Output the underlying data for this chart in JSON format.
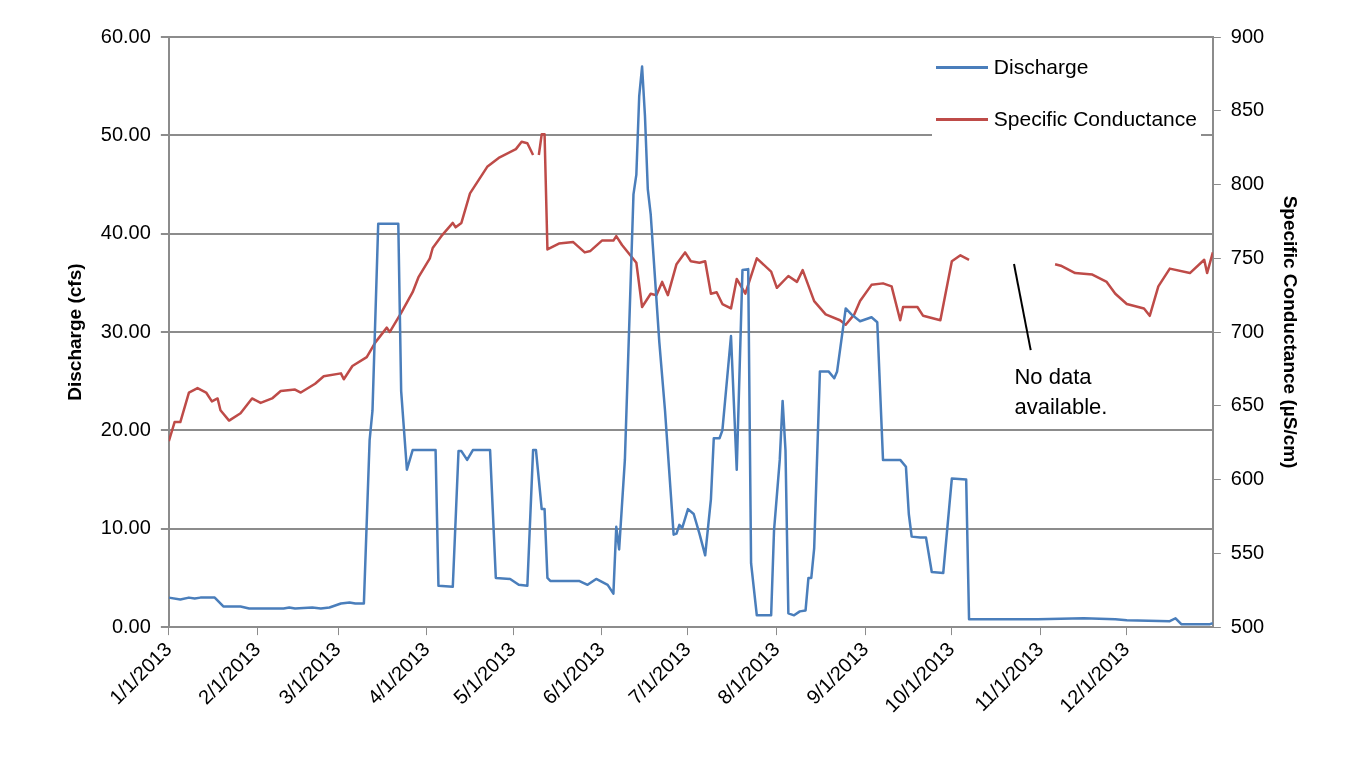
{
  "chart_data": {
    "type": "line",
    "xlabel": null,
    "ylabel": "Discharge (cfs)",
    "y2label": "Specific Conductance (µS/cm)",
    "xlim": [
      "2013-01-01",
      "2013-12-31"
    ],
    "xticks": [
      {
        "value": "2013-01-01",
        "label": "1/1/2013"
      },
      {
        "value": "2013-02-01",
        "label": "2/1/2013"
      },
      {
        "value": "2013-03-01",
        "label": "3/1/2013"
      },
      {
        "value": "2013-04-01",
        "label": "4/1/2013"
      },
      {
        "value": "2013-05-01",
        "label": "5/1/2013"
      },
      {
        "value": "2013-06-01",
        "label": "6/1/2013"
      },
      {
        "value": "2013-07-01",
        "label": "7/1/2013"
      },
      {
        "value": "2013-08-01",
        "label": "8/1/2013"
      },
      {
        "value": "2013-09-01",
        "label": "9/1/2013"
      },
      {
        "value": "2013-10-01",
        "label": "10/1/2013"
      },
      {
        "value": "2013-11-01",
        "label": "11/1/2013"
      },
      {
        "value": "2013-12-01",
        "label": "12/1/2013"
      }
    ],
    "ylim": [
      0,
      60
    ],
    "yticks": [
      {
        "value": 0,
        "label": "0.00"
      },
      {
        "value": 10,
        "label": "10.00"
      },
      {
        "value": 20,
        "label": "20.00"
      },
      {
        "value": 30,
        "label": "30.00"
      },
      {
        "value": 40,
        "label": "40.00"
      },
      {
        "value": 50,
        "label": "50.00"
      },
      {
        "value": 60,
        "label": "60.00"
      }
    ],
    "y2lim": [
      500,
      900
    ],
    "y2ticks": [
      500,
      550,
      600,
      650,
      700,
      750,
      800,
      850,
      900
    ],
    "grid": "y",
    "legend": "top right",
    "marker": "none",
    "line_style": "solid",
    "annotations": [
      "No data available."
    ],
    "series": [
      {
        "name": "Discharge",
        "color": "#4a7ebb",
        "x": [
          "2013-01-01",
          "2013-01-05",
          "2013-01-08",
          "2013-01-10",
          "2013-01-12",
          "2013-01-17",
          "2013-01-20",
          "2013-01-26",
          "2013-01-29",
          "2013-02-10",
          "2013-02-12",
          "2013-02-14",
          "2013-02-20",
          "2013-02-23",
          "2013-02-26",
          "2013-03-02",
          "2013-03-05",
          "2013-03-07",
          "2013-03-10",
          "2013-03-12",
          "2013-03-13",
          "2013-03-15",
          "2013-03-22",
          "2013-03-23",
          "2013-03-25",
          "2013-03-27",
          "2013-04-04",
          "2013-04-05",
          "2013-04-10",
          "2013-04-12",
          "2013-04-13",
          "2013-04-15",
          "2013-04-17",
          "2013-04-23",
          "2013-04-25",
          "2013-04-30",
          "2013-05-03",
          "2013-05-06",
          "2013-05-08",
          "2013-05-09",
          "2013-05-11",
          "2013-05-12",
          "2013-05-13",
          "2013-05-14",
          "2013-05-24",
          "2013-05-27",
          "2013-05-30",
          "2013-06-03",
          "2013-06-05",
          "2013-06-06",
          "2013-06-07",
          "2013-06-09",
          "2013-06-12",
          "2013-06-13",
          "2013-06-14",
          "2013-06-15",
          "2013-06-16",
          "2013-06-17",
          "2013-06-18",
          "2013-06-21",
          "2013-06-23",
          "2013-06-26",
          "2013-06-27",
          "2013-06-28",
          "2013-06-29",
          "2013-07-01",
          "2013-07-03",
          "2013-07-05",
          "2013-07-07",
          "2013-07-09",
          "2013-07-10",
          "2013-07-12",
          "2013-07-13",
          "2013-07-16",
          "2013-07-18",
          "2013-07-20",
          "2013-07-22",
          "2013-07-23",
          "2013-07-25",
          "2013-07-30",
          "2013-07-31",
          "2013-08-02",
          "2013-08-03",
          "2013-08-04",
          "2013-08-05",
          "2013-08-07",
          "2013-08-09",
          "2013-08-11",
          "2013-08-12",
          "2013-08-13",
          "2013-08-14",
          "2013-08-16",
          "2013-08-19",
          "2013-08-21",
          "2013-08-22",
          "2013-08-25",
          "2013-08-27",
          "2013-08-30",
          "2013-09-03",
          "2013-09-05",
          "2013-09-07",
          "2013-09-13",
          "2013-09-15",
          "2013-09-16",
          "2013-09-17",
          "2013-09-20",
          "2013-09-22",
          "2013-09-24",
          "2013-09-28",
          "2013-10-01",
          "2013-10-06",
          "2013-10-07",
          "2013-10-31",
          "2013-11-16",
          "2013-11-27",
          "2013-12-01",
          "2013-12-16",
          "2013-12-18",
          "2013-12-20",
          "2013-12-30",
          "2013-12-31"
        ],
        "values": [
          3.0,
          2.8,
          3.0,
          2.9,
          3.0,
          3.0,
          2.1,
          2.1,
          1.9,
          1.9,
          2.0,
          1.9,
          2.0,
          1.9,
          2.0,
          2.4,
          2.5,
          2.4,
          2.4,
          19,
          22,
          41,
          41,
          24,
          16,
          18,
          18,
          4.2,
          4.1,
          17.9,
          17.9,
          17,
          18,
          18,
          5.0,
          4.9,
          4.3,
          4.2,
          18,
          18,
          12,
          12,
          5.0,
          4.7,
          4.7,
          4.3,
          4.9,
          4.3,
          3.4,
          10.2,
          7.9,
          17,
          44,
          46,
          54,
          57,
          52,
          44.5,
          42,
          29,
          22,
          9.4,
          9.5,
          10.4,
          10.1,
          12,
          11.5,
          9.5,
          7.3,
          13,
          19.2,
          19.2,
          20,
          29.6,
          16,
          36.3,
          36.4,
          6.5,
          1.2,
          1.2,
          9.8,
          17,
          23,
          18,
          1.4,
          1.2,
          1.6,
          1.7,
          5,
          5,
          8,
          26,
          26,
          25.3,
          26,
          32.4,
          31.8,
          31.1,
          31.5,
          31,
          17,
          17,
          16.3,
          11.5,
          9.2,
          9.1,
          9.1,
          5.6,
          5.5,
          15.1,
          15,
          0.8,
          0.8,
          0.9,
          0.8,
          0.7,
          0.6,
          0.9,
          0.3,
          0.3,
          0.4
        ]
      },
      {
        "name": "Specific Conductance",
        "color": "#be4b48",
        "axis": "y2",
        "x": [
          "2013-01-01",
          "2013-01-03",
          "2013-01-05",
          "2013-01-08",
          "2013-01-11",
          "2013-01-14",
          "2013-01-16",
          "2013-01-18",
          "2013-01-19",
          "2013-01-22",
          "2013-01-26",
          "2013-01-30",
          "2013-02-02",
          "2013-02-06",
          "2013-02-09",
          "2013-02-14",
          "2013-02-16",
          "2013-02-21",
          "2013-02-24",
          "2013-03-02",
          "2013-03-03",
          "2013-03-06",
          "2013-03-11",
          "2013-03-14",
          "2013-03-18",
          "2013-03-19",
          "2013-03-23",
          "2013-03-27",
          "2013-03-29",
          "2013-04-02",
          "2013-04-03",
          "2013-04-06",
          "2013-04-10",
          "2013-04-11",
          "2013-04-13",
          "2013-04-16",
          "2013-04-22",
          "2013-04-26",
          "2013-05-02",
          "2013-05-04",
          "2013-05-06",
          "2013-05-08",
          "2013-05-09",
          "2013-05-10",
          "2013-05-11",
          "2013-05-12",
          "2013-05-13",
          "2013-05-17",
          "2013-05-22",
          "2013-05-26",
          "2013-05-28",
          "2013-06-01",
          "2013-06-05",
          "2013-06-06",
          "2013-06-08",
          "2013-06-13",
          "2013-06-15",
          "2013-06-18",
          "2013-06-20",
          "2013-06-22",
          "2013-06-24",
          "2013-06-27",
          "2013-06-30",
          "2013-07-02",
          "2013-07-05",
          "2013-07-07",
          "2013-07-09",
          "2013-07-11",
          "2013-07-13",
          "2013-07-16",
          "2013-07-18",
          "2013-07-21",
          "2013-07-25",
          "2013-07-30",
          "2013-08-01",
          "2013-08-05",
          "2013-08-08",
          "2013-08-10",
          "2013-08-14",
          "2013-08-18",
          "2013-08-23",
          "2013-08-25",
          "2013-08-28",
          "2013-08-30",
          "2013-09-03",
          "2013-09-07",
          "2013-09-10",
          "2013-09-13",
          "2013-09-14",
          "2013-09-19",
          "2013-09-21",
          "2013-09-27",
          "2013-10-01",
          "2013-10-04",
          "2013-10-07",
          "2013-10-20",
          "2013-11-06",
          "2013-11-08",
          "2013-11-13",
          "2013-11-19",
          "2013-11-24",
          "2013-11-27",
          "2013-12-01",
          "2013-12-07",
          "2013-12-09",
          "2013-12-12",
          "2013-12-16",
          "2013-12-23",
          "2013-12-28",
          "2013-12-29",
          "2013-12-31"
        ],
        "values": [
          626,
          639,
          639,
          659,
          662,
          659,
          653,
          655,
          647,
          640,
          645,
          655,
          652,
          655,
          660,
          661,
          659,
          665,
          670,
          672,
          668,
          677,
          683,
          693,
          703,
          700,
          713,
          727,
          737,
          750,
          757,
          765,
          774,
          771,
          774,
          794,
          812,
          818,
          824,
          829,
          828,
          820,
          null,
          820,
          834,
          834,
          756,
          760,
          761,
          754,
          755,
          762,
          762,
          765,
          759,
          747,
          717,
          726,
          725,
          734,
          725,
          746,
          754,
          748,
          747,
          748,
          726,
          727,
          719,
          716,
          736,
          726,
          750,
          741,
          730,
          738,
          734,
          742,
          721,
          712,
          708,
          705,
          712,
          721,
          732,
          733,
          731,
          708,
          717,
          717,
          711,
          708,
          748,
          752,
          749,
          null,
          746,
          745,
          740,
          739,
          734,
          726,
          719,
          716,
          711,
          731,
          743,
          740,
          749,
          740,
          754
        ]
      }
    ]
  }
}
